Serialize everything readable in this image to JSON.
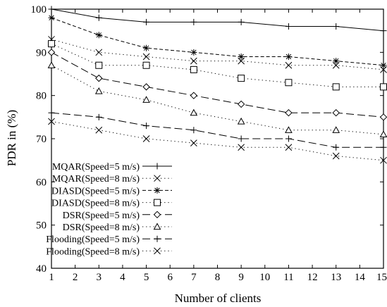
{
  "chart_data": {
    "type": "line",
    "title": "",
    "xlabel": "Number of clients",
    "ylabel": "PDR in (%)",
    "xlim": [
      1,
      15
    ],
    "ylim": [
      40,
      100
    ],
    "xticks": [
      "1",
      "2",
      "3",
      "4",
      "5",
      "6",
      "7",
      "8",
      "9",
      "10",
      "11",
      "12",
      "13",
      "14",
      "15"
    ],
    "yticks": [
      "40",
      "50",
      "60",
      "70",
      "80",
      "90",
      "100"
    ],
    "grid": false,
    "legend_position": "bottom-left",
    "x": [
      1,
      3,
      5,
      7,
      9,
      11,
      13,
      15
    ],
    "series": [
      {
        "name": "MQAR(Speed=5 m/s)",
        "marker": "plus",
        "dash": "solid",
        "values": [
          100,
          98,
          97,
          97,
          97,
          96,
          96,
          95
        ]
      },
      {
        "name": "MQAR(Speed=8 m/s)",
        "marker": "x",
        "dash": "dot",
        "values": [
          93,
          90,
          89,
          88,
          88,
          87,
          87,
          86
        ]
      },
      {
        "name": "DIASD(Speed=5 m/s)",
        "marker": "star",
        "dash": "dash",
        "values": [
          98,
          94,
          91,
          90,
          89,
          89,
          88,
          87
        ]
      },
      {
        "name": "DIASD(Speed=8 m/s)",
        "marker": "square",
        "dash": "dot",
        "values": [
          92,
          87,
          87,
          86,
          84,
          83,
          82,
          82
        ]
      },
      {
        "name": "DSR(Speed=5 m/s)",
        "marker": "diamond",
        "dash": "longdash",
        "values": [
          90,
          84,
          82,
          80,
          78,
          76,
          76,
          75
        ]
      },
      {
        "name": "DSR(Speed=8 m/s)",
        "marker": "triangle",
        "dash": "dot",
        "values": [
          87,
          81,
          79,
          76,
          74,
          72,
          72,
          71
        ]
      },
      {
        "name": "Flooding(Speed=5 m/s)",
        "marker": "plus",
        "dash": "longdash",
        "values": [
          76,
          75,
          73,
          72,
          70,
          70,
          68,
          68
        ]
      },
      {
        "name": "Flooding(Speed=8 m/s)",
        "marker": "x",
        "dash": "dot",
        "values": [
          74,
          72,
          70,
          69,
          68,
          68,
          66,
          65
        ]
      }
    ]
  }
}
